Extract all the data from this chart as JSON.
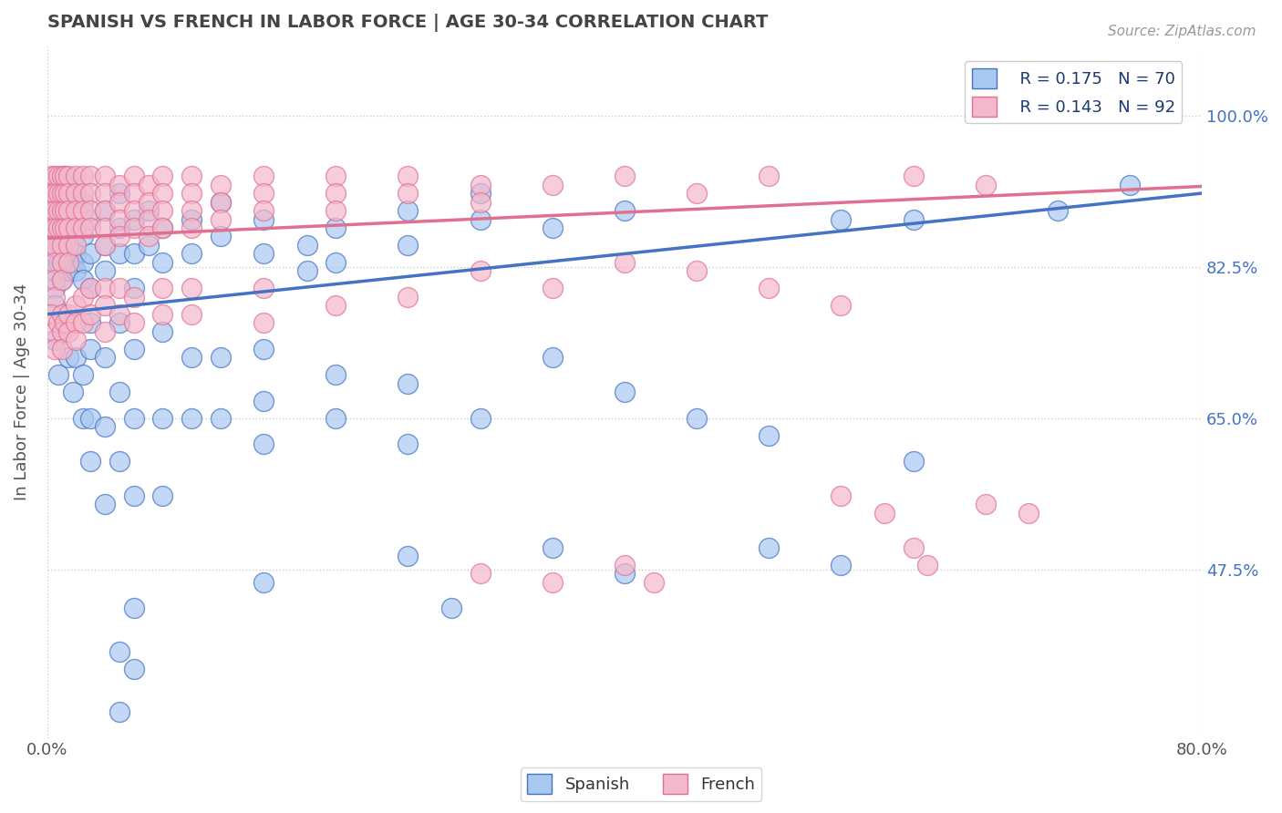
{
  "title": "SPANISH VS FRENCH IN LABOR FORCE | AGE 30-34 CORRELATION CHART",
  "source_text": "Source: ZipAtlas.com",
  "ylabel": "In Labor Force | Age 30-34",
  "xlim": [
    0.0,
    0.8
  ],
  "ylim": [
    0.28,
    1.08
  ],
  "xtick_labels": [
    "0.0%",
    "80.0%"
  ],
  "xtick_positions": [
    0.0,
    0.8
  ],
  "ytick_labels": [
    "47.5%",
    "65.0%",
    "82.5%",
    "100.0%"
  ],
  "ytick_positions": [
    0.475,
    0.65,
    0.825,
    1.0
  ],
  "spanish_color": "#a8c8f0",
  "french_color": "#f4b8cc",
  "spanish_line_color": "#4472c4",
  "french_line_color": "#e07090",
  "spanish_R": 0.175,
  "spanish_N": 70,
  "french_R": 0.143,
  "french_N": 92,
  "spanish_scatter": [
    [
      0.005,
      0.9
    ],
    [
      0.005,
      0.88
    ],
    [
      0.005,
      0.86
    ],
    [
      0.005,
      0.84
    ],
    [
      0.005,
      0.82
    ],
    [
      0.005,
      0.8
    ],
    [
      0.005,
      0.78
    ],
    [
      0.008,
      0.92
    ],
    [
      0.008,
      0.88
    ],
    [
      0.008,
      0.85
    ],
    [
      0.008,
      0.83
    ],
    [
      0.01,
      0.91
    ],
    [
      0.01,
      0.87
    ],
    [
      0.01,
      0.84
    ],
    [
      0.01,
      0.81
    ],
    [
      0.012,
      0.93
    ],
    [
      0.012,
      0.88
    ],
    [
      0.012,
      0.85
    ],
    [
      0.015,
      0.92
    ],
    [
      0.015,
      0.87
    ],
    [
      0.015,
      0.84
    ],
    [
      0.015,
      0.82
    ],
    [
      0.018,
      0.9
    ],
    [
      0.018,
      0.86
    ],
    [
      0.018,
      0.83
    ],
    [
      0.02,
      0.91
    ],
    [
      0.02,
      0.87
    ],
    [
      0.02,
      0.84
    ],
    [
      0.02,
      0.82
    ],
    [
      0.025,
      0.9
    ],
    [
      0.025,
      0.86
    ],
    [
      0.025,
      0.83
    ],
    [
      0.025,
      0.81
    ],
    [
      0.03,
      0.88
    ],
    [
      0.03,
      0.84
    ],
    [
      0.03,
      0.8
    ],
    [
      0.03,
      0.76
    ],
    [
      0.04,
      0.89
    ],
    [
      0.04,
      0.85
    ],
    [
      0.04,
      0.82
    ],
    [
      0.05,
      0.91
    ],
    [
      0.05,
      0.87
    ],
    [
      0.05,
      0.84
    ],
    [
      0.06,
      0.88
    ],
    [
      0.06,
      0.84
    ],
    [
      0.06,
      0.8
    ],
    [
      0.07,
      0.89
    ],
    [
      0.07,
      0.85
    ],
    [
      0.08,
      0.87
    ],
    [
      0.08,
      0.83
    ],
    [
      0.1,
      0.88
    ],
    [
      0.1,
      0.84
    ],
    [
      0.12,
      0.9
    ],
    [
      0.12,
      0.86
    ],
    [
      0.15,
      0.88
    ],
    [
      0.15,
      0.84
    ],
    [
      0.18,
      0.85
    ],
    [
      0.18,
      0.82
    ],
    [
      0.2,
      0.87
    ],
    [
      0.2,
      0.83
    ],
    [
      0.25,
      0.89
    ],
    [
      0.25,
      0.85
    ],
    [
      0.3,
      0.91
    ],
    [
      0.3,
      0.88
    ],
    [
      0.35,
      0.87
    ],
    [
      0.4,
      0.89
    ],
    [
      0.55,
      0.88
    ],
    [
      0.6,
      0.88
    ],
    [
      0.7,
      0.89
    ],
    [
      0.75,
      0.92
    ]
  ],
  "spanish_scatter_low": [
    [
      0.005,
      0.74
    ],
    [
      0.008,
      0.7
    ],
    [
      0.012,
      0.76
    ],
    [
      0.015,
      0.72
    ],
    [
      0.018,
      0.68
    ],
    [
      0.02,
      0.72
    ],
    [
      0.025,
      0.7
    ],
    [
      0.025,
      0.65
    ],
    [
      0.03,
      0.73
    ],
    [
      0.03,
      0.65
    ],
    [
      0.03,
      0.6
    ],
    [
      0.04,
      0.72
    ],
    [
      0.04,
      0.64
    ],
    [
      0.04,
      0.55
    ],
    [
      0.05,
      0.76
    ],
    [
      0.05,
      0.68
    ],
    [
      0.05,
      0.6
    ],
    [
      0.06,
      0.73
    ],
    [
      0.06,
      0.65
    ],
    [
      0.06,
      0.56
    ],
    [
      0.08,
      0.75
    ],
    [
      0.08,
      0.65
    ],
    [
      0.08,
      0.56
    ],
    [
      0.1,
      0.72
    ],
    [
      0.1,
      0.65
    ],
    [
      0.12,
      0.72
    ],
    [
      0.12,
      0.65
    ],
    [
      0.15,
      0.73
    ],
    [
      0.15,
      0.67
    ],
    [
      0.15,
      0.62
    ],
    [
      0.2,
      0.7
    ],
    [
      0.2,
      0.65
    ],
    [
      0.25,
      0.69
    ],
    [
      0.25,
      0.62
    ],
    [
      0.3,
      0.65
    ],
    [
      0.35,
      0.72
    ],
    [
      0.4,
      0.68
    ],
    [
      0.45,
      0.65
    ],
    [
      0.5,
      0.63
    ],
    [
      0.6,
      0.6
    ],
    [
      0.5,
      0.5
    ],
    [
      0.55,
      0.48
    ],
    [
      0.35,
      0.5
    ],
    [
      0.4,
      0.47
    ],
    [
      0.25,
      0.49
    ],
    [
      0.28,
      0.43
    ],
    [
      0.15,
      0.46
    ],
    [
      0.06,
      0.43
    ],
    [
      0.06,
      0.36
    ],
    [
      0.05,
      0.38
    ],
    [
      0.05,
      0.31
    ]
  ],
  "french_scatter": [
    [
      0.003,
      0.93
    ],
    [
      0.003,
      0.91
    ],
    [
      0.003,
      0.89
    ],
    [
      0.003,
      0.87
    ],
    [
      0.003,
      0.85
    ],
    [
      0.005,
      0.93
    ],
    [
      0.005,
      0.91
    ],
    [
      0.005,
      0.89
    ],
    [
      0.005,
      0.87
    ],
    [
      0.005,
      0.85
    ],
    [
      0.005,
      0.83
    ],
    [
      0.005,
      0.81
    ],
    [
      0.005,
      0.79
    ],
    [
      0.008,
      0.93
    ],
    [
      0.008,
      0.91
    ],
    [
      0.008,
      0.89
    ],
    [
      0.008,
      0.87
    ],
    [
      0.01,
      0.93
    ],
    [
      0.01,
      0.91
    ],
    [
      0.01,
      0.89
    ],
    [
      0.01,
      0.87
    ],
    [
      0.01,
      0.85
    ],
    [
      0.01,
      0.83
    ],
    [
      0.01,
      0.81
    ],
    [
      0.012,
      0.93
    ],
    [
      0.012,
      0.91
    ],
    [
      0.012,
      0.89
    ],
    [
      0.012,
      0.87
    ],
    [
      0.015,
      0.93
    ],
    [
      0.015,
      0.91
    ],
    [
      0.015,
      0.89
    ],
    [
      0.015,
      0.87
    ],
    [
      0.015,
      0.85
    ],
    [
      0.015,
      0.83
    ],
    [
      0.02,
      0.93
    ],
    [
      0.02,
      0.91
    ],
    [
      0.02,
      0.89
    ],
    [
      0.02,
      0.87
    ],
    [
      0.02,
      0.85
    ],
    [
      0.025,
      0.93
    ],
    [
      0.025,
      0.91
    ],
    [
      0.025,
      0.89
    ],
    [
      0.025,
      0.87
    ],
    [
      0.03,
      0.93
    ],
    [
      0.03,
      0.91
    ],
    [
      0.03,
      0.89
    ],
    [
      0.03,
      0.87
    ],
    [
      0.04,
      0.93
    ],
    [
      0.04,
      0.91
    ],
    [
      0.04,
      0.89
    ],
    [
      0.04,
      0.87
    ],
    [
      0.04,
      0.85
    ],
    [
      0.05,
      0.92
    ],
    [
      0.05,
      0.9
    ],
    [
      0.05,
      0.88
    ],
    [
      0.05,
      0.86
    ],
    [
      0.06,
      0.93
    ],
    [
      0.06,
      0.91
    ],
    [
      0.06,
      0.89
    ],
    [
      0.06,
      0.87
    ],
    [
      0.07,
      0.92
    ],
    [
      0.07,
      0.9
    ],
    [
      0.07,
      0.88
    ],
    [
      0.07,
      0.86
    ],
    [
      0.08,
      0.93
    ],
    [
      0.08,
      0.91
    ],
    [
      0.08,
      0.89
    ],
    [
      0.08,
      0.87
    ],
    [
      0.1,
      0.93
    ],
    [
      0.1,
      0.91
    ],
    [
      0.1,
      0.89
    ],
    [
      0.1,
      0.87
    ],
    [
      0.12,
      0.92
    ],
    [
      0.12,
      0.9
    ],
    [
      0.12,
      0.88
    ],
    [
      0.15,
      0.93
    ],
    [
      0.15,
      0.91
    ],
    [
      0.15,
      0.89
    ],
    [
      0.2,
      0.93
    ],
    [
      0.2,
      0.91
    ],
    [
      0.2,
      0.89
    ],
    [
      0.25,
      0.93
    ],
    [
      0.25,
      0.91
    ],
    [
      0.3,
      0.92
    ],
    [
      0.3,
      0.9
    ],
    [
      0.35,
      0.92
    ],
    [
      0.4,
      0.93
    ],
    [
      0.45,
      0.91
    ],
    [
      0.5,
      0.93
    ],
    [
      0.6,
      0.93
    ],
    [
      0.65,
      0.92
    ]
  ],
  "french_scatter_low": [
    [
      0.003,
      0.77
    ],
    [
      0.005,
      0.75
    ],
    [
      0.005,
      0.73
    ],
    [
      0.008,
      0.76
    ],
    [
      0.01,
      0.77
    ],
    [
      0.01,
      0.75
    ],
    [
      0.01,
      0.73
    ],
    [
      0.012,
      0.76
    ],
    [
      0.015,
      0.77
    ],
    [
      0.015,
      0.75
    ],
    [
      0.02,
      0.78
    ],
    [
      0.02,
      0.76
    ],
    [
      0.02,
      0.74
    ],
    [
      0.025,
      0.79
    ],
    [
      0.025,
      0.76
    ],
    [
      0.03,
      0.8
    ],
    [
      0.03,
      0.77
    ],
    [
      0.04,
      0.8
    ],
    [
      0.04,
      0.78
    ],
    [
      0.04,
      0.75
    ],
    [
      0.05,
      0.8
    ],
    [
      0.05,
      0.77
    ],
    [
      0.06,
      0.79
    ],
    [
      0.06,
      0.76
    ],
    [
      0.08,
      0.8
    ],
    [
      0.08,
      0.77
    ],
    [
      0.1,
      0.8
    ],
    [
      0.1,
      0.77
    ],
    [
      0.15,
      0.8
    ],
    [
      0.15,
      0.76
    ],
    [
      0.2,
      0.78
    ],
    [
      0.25,
      0.79
    ],
    [
      0.3,
      0.82
    ],
    [
      0.35,
      0.8
    ],
    [
      0.4,
      0.83
    ],
    [
      0.45,
      0.82
    ],
    [
      0.5,
      0.8
    ],
    [
      0.55,
      0.78
    ],
    [
      0.55,
      0.56
    ],
    [
      0.58,
      0.54
    ],
    [
      0.65,
      0.55
    ],
    [
      0.68,
      0.54
    ],
    [
      0.6,
      0.5
    ],
    [
      0.61,
      0.48
    ],
    [
      0.4,
      0.48
    ],
    [
      0.42,
      0.46
    ],
    [
      0.3,
      0.47
    ],
    [
      0.35,
      0.46
    ]
  ],
  "background_color": "#ffffff",
  "grid_color": "#cccccc",
  "title_color": "#444444",
  "axis_label_color": "#555555",
  "right_tick_color": "#4472c4"
}
